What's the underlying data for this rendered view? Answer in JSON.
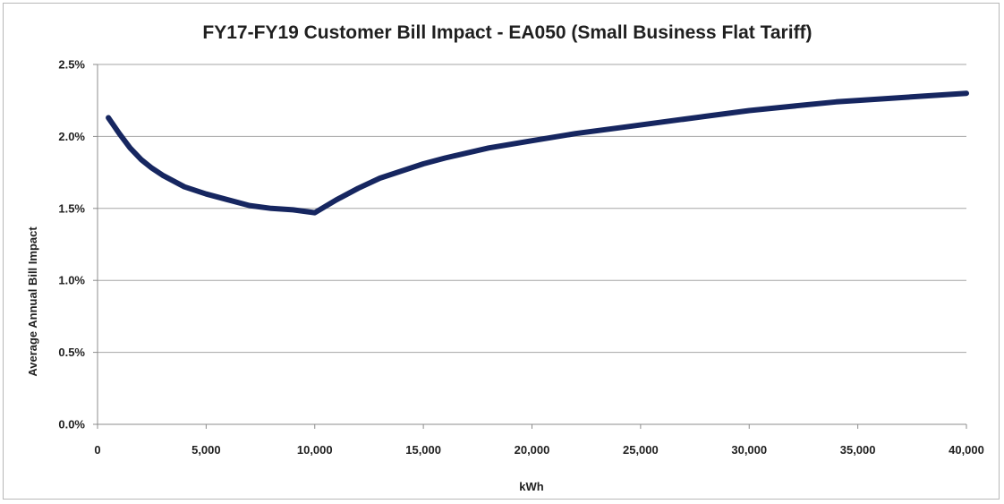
{
  "chart_data": {
    "type": "line",
    "title": "FY17-FY19 Customer Bill Impact - EA050 (Small Business Flat Tariff)",
    "xlabel": "kWh",
    "ylabel": "Average Annual Bill Impact",
    "xlim": [
      0,
      40000
    ],
    "ylim": [
      0,
      0.025
    ],
    "x_ticks": [
      0,
      5000,
      10000,
      15000,
      20000,
      25000,
      30000,
      35000,
      40000
    ],
    "x_tick_labels": [
      "0",
      "5,000",
      "10,000",
      "15,000",
      "20,000",
      "25,000",
      "30,000",
      "35,000",
      "40,000"
    ],
    "y_ticks": [
      0,
      0.005,
      0.01,
      0.015,
      0.02,
      0.025
    ],
    "y_tick_labels": [
      "0.0%",
      "0.5%",
      "1.0%",
      "1.5%",
      "2.0%",
      "2.5%"
    ],
    "grid": "horizontal",
    "legend": "none",
    "series_color": "#162660",
    "series": [
      {
        "x": [
          500,
          1000,
          1500,
          2000,
          2500,
          3000,
          4000,
          5000,
          6000,
          7000,
          8000,
          9000,
          10000,
          11000,
          12000,
          13000,
          14000,
          15000,
          16000,
          18000,
          20000,
          22000,
          24000,
          26000,
          28000,
          30000,
          32000,
          34000,
          36000,
          38000,
          40000
        ],
        "values": [
          0.0213,
          0.0202,
          0.0192,
          0.0184,
          0.0178,
          0.0173,
          0.0165,
          0.016,
          0.0156,
          0.0152,
          0.015,
          0.0149,
          0.0147,
          0.0156,
          0.0164,
          0.0171,
          0.0176,
          0.0181,
          0.0185,
          0.0192,
          0.0197,
          0.0202,
          0.0206,
          0.021,
          0.0214,
          0.0218,
          0.0221,
          0.0224,
          0.0226,
          0.0228,
          0.023
        ]
      }
    ]
  }
}
